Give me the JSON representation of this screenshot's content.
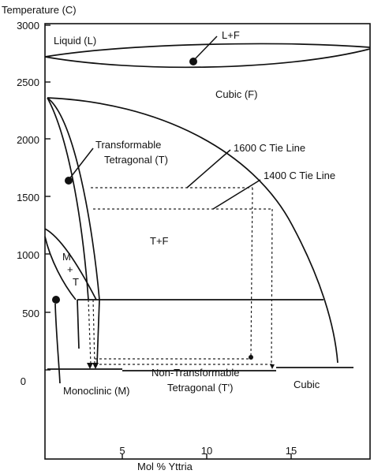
{
  "chart_data": {
    "type": "phase-diagram",
    "title": "",
    "ylabel": "Temperature (C)",
    "xlabel": "Mol % Yttria",
    "x_ticks": [
      "5",
      "10",
      "15"
    ],
    "y_ticks": [
      "3000",
      "2500",
      "2000",
      "1500",
      "1000",
      "500",
      "0"
    ],
    "xlim": [
      0,
      20
    ],
    "ylim": [
      -100,
      3000
    ],
    "region_labels": {
      "liquid": "Liquid (L)",
      "l_f": "L+F",
      "cubic_f": "Cubic (F)",
      "transformable_1": "Transformable",
      "transformable_2": "Tetragonal (T)",
      "tie_1600": "1600 C Tie Line",
      "tie_1400": "1400 C Tie Line",
      "t_f": "T+F",
      "m": "M",
      "plus": "+",
      "t": "T",
      "non_transformable_1": "Non-Transformable",
      "non_transformable_2": "Tetragonal (T')",
      "monoclinic": "Monoclinic (M)",
      "cubic": "Cubic"
    }
  }
}
